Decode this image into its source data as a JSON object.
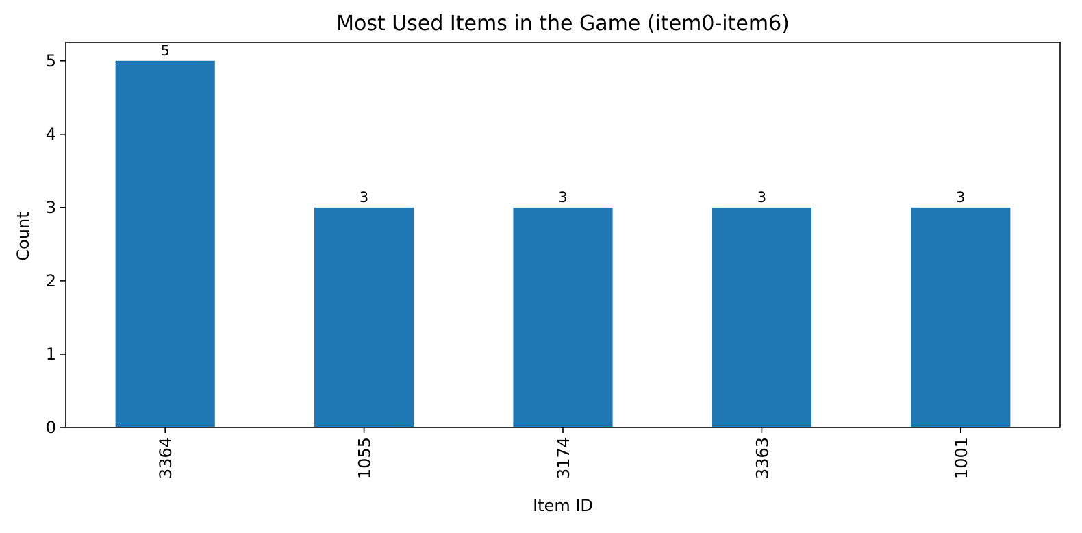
{
  "chart_data": {
    "type": "bar",
    "title": "Most Used Items in the Game (item0-item6)",
    "xlabel": "Item ID",
    "ylabel": "Count",
    "categories": [
      "3364",
      "1055",
      "3174",
      "3363",
      "1001"
    ],
    "values": [
      5,
      3,
      3,
      3,
      3
    ],
    "data_labels": [
      "5",
      "3",
      "3",
      "3",
      "3"
    ],
    "ylim": [
      0,
      5.25
    ],
    "yticks": [
      0,
      1,
      2,
      3,
      4,
      5
    ],
    "ytick_labels": [
      "0",
      "1",
      "2",
      "3",
      "4",
      "5"
    ],
    "grid": false,
    "legend": "none",
    "bar_color": "#1f77b4",
    "x_tick_rotation": "vertical"
  }
}
